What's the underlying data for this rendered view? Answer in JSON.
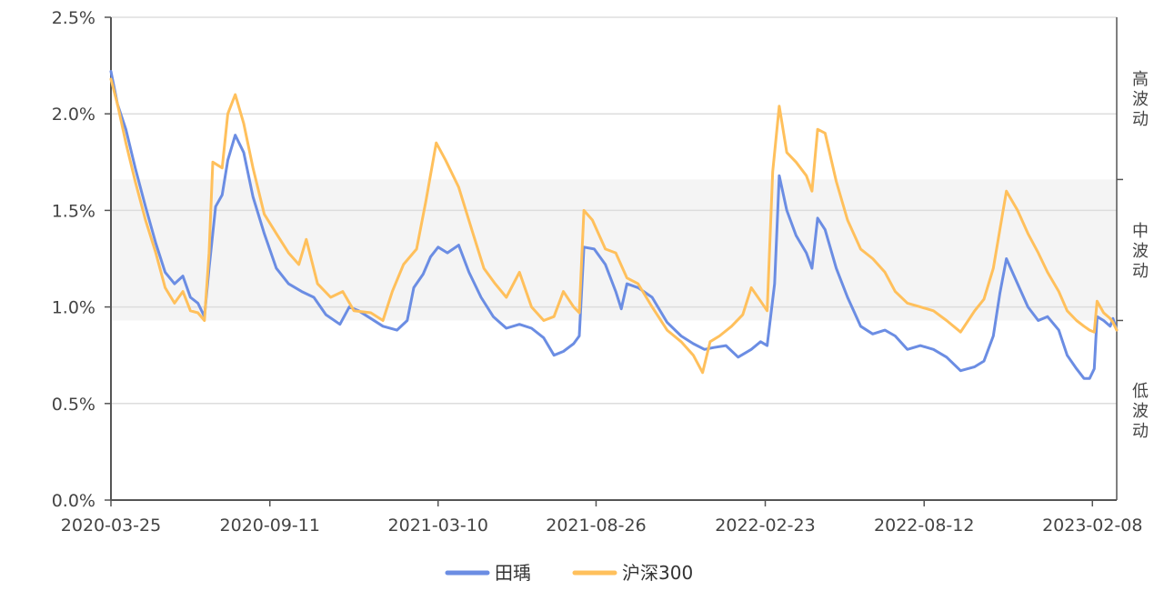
{
  "colors": {
    "tianyu": "#6B8DE3",
    "hs300": "#FFC05C",
    "band": "#F4F4F4",
    "grid": "#DDDDDD",
    "axis": "#555555"
  },
  "chart_data": {
    "type": "line",
    "ylim": [
      0,
      0.025
    ],
    "y_ticks": [
      {
        "value": 0.0,
        "label": "0.0%"
      },
      {
        "value": 0.005,
        "label": "0.5%"
      },
      {
        "value": 0.01,
        "label": "1.0%"
      },
      {
        "value": 0.015,
        "label": "1.5%"
      },
      {
        "value": 0.02,
        "label": "2.0%"
      },
      {
        "value": 0.025,
        "label": "2.5%"
      }
    ],
    "xlim": [
      "2020-03-25",
      "2023-03-06"
    ],
    "x_ticks": [
      "2020-03-25",
      "2020-09-11",
      "2021-03-10",
      "2021-08-26",
      "2022-02-23",
      "2022-08-12",
      "2023-02-08"
    ],
    "bands": {
      "low_mid_boundary": 0.0093,
      "mid_high_boundary": 0.0166,
      "labels": [
        {
          "name": "high",
          "text": "高波动",
          "lines": [
            "高",
            "波",
            "动"
          ]
        },
        {
          "name": "mid",
          "text": "中波动",
          "lines": [
            "中",
            "波",
            "动"
          ]
        },
        {
          "name": "low",
          "text": "低波动",
          "lines": [
            "低",
            "波",
            "动"
          ]
        }
      ]
    },
    "legend_position": "bottom-center",
    "series": [
      {
        "name": "田瑀",
        "key": "tianyu",
        "points": [
          [
            "2020-03-25",
            0.0222
          ],
          [
            "2020-04-01",
            0.0205
          ],
          [
            "2020-04-10",
            0.0192
          ],
          [
            "2020-04-20",
            0.0172
          ],
          [
            "2020-05-01",
            0.0152
          ],
          [
            "2020-05-12",
            0.0133
          ],
          [
            "2020-05-22",
            0.0118
          ],
          [
            "2020-06-01",
            0.0112
          ],
          [
            "2020-06-10",
            0.0116
          ],
          [
            "2020-06-18",
            0.0105
          ],
          [
            "2020-06-26",
            0.0102
          ],
          [
            "2020-07-03",
            0.0095
          ],
          [
            "2020-07-08",
            0.012
          ],
          [
            "2020-07-15",
            0.0152
          ],
          [
            "2020-07-22",
            0.0158
          ],
          [
            "2020-07-28",
            0.0176
          ],
          [
            "2020-08-05",
            0.0189
          ],
          [
            "2020-08-14",
            0.018
          ],
          [
            "2020-08-24",
            0.0157
          ],
          [
            "2020-09-05",
            0.0138
          ],
          [
            "2020-09-18",
            0.012
          ],
          [
            "2020-10-01",
            0.0112
          ],
          [
            "2020-10-15",
            0.0108
          ],
          [
            "2020-10-28",
            0.0105
          ],
          [
            "2020-11-10",
            0.0096
          ],
          [
            "2020-11-25",
            0.0091
          ],
          [
            "2020-12-05",
            0.01
          ],
          [
            "2020-12-15",
            0.0098
          ],
          [
            "2020-12-28",
            0.0094
          ],
          [
            "2021-01-10",
            0.009
          ],
          [
            "2021-01-25",
            0.0088
          ],
          [
            "2021-02-05",
            0.0093
          ],
          [
            "2021-02-12",
            0.011
          ],
          [
            "2021-02-22",
            0.0117
          ],
          [
            "2021-03-02",
            0.0126
          ],
          [
            "2021-03-10",
            0.0131
          ],
          [
            "2021-03-20",
            0.0128
          ],
          [
            "2021-04-01",
            0.0132
          ],
          [
            "2021-04-12",
            0.0118
          ],
          [
            "2021-04-25",
            0.0105
          ],
          [
            "2021-05-08",
            0.0095
          ],
          [
            "2021-05-22",
            0.0089
          ],
          [
            "2021-06-05",
            0.0091
          ],
          [
            "2021-06-18",
            0.0089
          ],
          [
            "2021-07-01",
            0.0084
          ],
          [
            "2021-07-12",
            0.0075
          ],
          [
            "2021-07-22",
            0.0077
          ],
          [
            "2021-08-02",
            0.0081
          ],
          [
            "2021-08-08",
            0.0085
          ],
          [
            "2021-08-13",
            0.0131
          ],
          [
            "2021-08-24",
            0.013
          ],
          [
            "2021-09-05",
            0.0122
          ],
          [
            "2021-09-16",
            0.0108
          ],
          [
            "2021-09-22",
            0.0099
          ],
          [
            "2021-09-28",
            0.0112
          ],
          [
            "2021-10-10",
            0.011
          ],
          [
            "2021-10-25",
            0.0105
          ],
          [
            "2021-11-10",
            0.0092
          ],
          [
            "2021-11-25",
            0.0085
          ],
          [
            "2021-12-08",
            0.0081
          ],
          [
            "2021-12-20",
            0.0078
          ],
          [
            "2021-12-30",
            0.0079
          ],
          [
            "2022-01-12",
            0.008
          ],
          [
            "2022-01-25",
            0.0074
          ],
          [
            "2022-02-08",
            0.0078
          ],
          [
            "2022-02-18",
            0.0082
          ],
          [
            "2022-02-25",
            0.008
          ],
          [
            "2022-03-05",
            0.0112
          ],
          [
            "2022-03-10",
            0.0168
          ],
          [
            "2022-03-18",
            0.015
          ],
          [
            "2022-03-28",
            0.0137
          ],
          [
            "2022-04-08",
            0.0128
          ],
          [
            "2022-04-14",
            0.012
          ],
          [
            "2022-04-20",
            0.0146
          ],
          [
            "2022-04-28",
            0.014
          ],
          [
            "2022-05-10",
            0.012
          ],
          [
            "2022-05-22",
            0.0105
          ],
          [
            "2022-06-05",
            0.009
          ],
          [
            "2022-06-18",
            0.0086
          ],
          [
            "2022-07-01",
            0.0088
          ],
          [
            "2022-07-12",
            0.0085
          ],
          [
            "2022-07-25",
            0.0078
          ],
          [
            "2022-08-08",
            0.008
          ],
          [
            "2022-08-22",
            0.0078
          ],
          [
            "2022-09-05",
            0.0074
          ],
          [
            "2022-09-20",
            0.0067
          ],
          [
            "2022-10-05",
            0.0069
          ],
          [
            "2022-10-15",
            0.0072
          ],
          [
            "2022-10-25",
            0.0085
          ],
          [
            "2022-11-01",
            0.0107
          ],
          [
            "2022-11-08",
            0.0125
          ],
          [
            "2022-11-20",
            0.0112
          ],
          [
            "2022-12-01",
            0.01
          ],
          [
            "2022-12-12",
            0.0093
          ],
          [
            "2022-12-22",
            0.0095
          ],
          [
            "2023-01-03",
            0.0088
          ],
          [
            "2023-01-12",
            0.0075
          ],
          [
            "2023-01-22",
            0.0068
          ],
          [
            "2023-01-30",
            0.0063
          ],
          [
            "2023-02-05",
            0.0063
          ],
          [
            "2023-02-10",
            0.0068
          ],
          [
            "2023-02-13",
            0.0095
          ],
          [
            "2023-02-20",
            0.0093
          ],
          [
            "2023-02-27",
            0.009
          ],
          [
            "2023-03-02",
            0.0094
          ],
          [
            "2023-03-06",
            0.0088
          ]
        ]
      },
      {
        "name": "沪深300",
        "key": "hs300",
        "points": [
          [
            "2020-03-25",
            0.0218
          ],
          [
            "2020-04-01",
            0.0205
          ],
          [
            "2020-04-10",
            0.0185
          ],
          [
            "2020-04-20",
            0.0165
          ],
          [
            "2020-05-01",
            0.0145
          ],
          [
            "2020-05-12",
            0.0128
          ],
          [
            "2020-05-22",
            0.011
          ],
          [
            "2020-06-01",
            0.0102
          ],
          [
            "2020-06-10",
            0.0108
          ],
          [
            "2020-06-18",
            0.0098
          ],
          [
            "2020-06-26",
            0.0097
          ],
          [
            "2020-07-03",
            0.0093
          ],
          [
            "2020-07-08",
            0.0128
          ],
          [
            "2020-07-12",
            0.0175
          ],
          [
            "2020-07-22",
            0.0172
          ],
          [
            "2020-07-28",
            0.02
          ],
          [
            "2020-08-05",
            0.021
          ],
          [
            "2020-08-14",
            0.0195
          ],
          [
            "2020-08-24",
            0.0172
          ],
          [
            "2020-09-05",
            0.0148
          ],
          [
            "2020-09-18",
            0.0138
          ],
          [
            "2020-10-01",
            0.0128
          ],
          [
            "2020-10-12",
            0.0122
          ],
          [
            "2020-10-20",
            0.0135
          ],
          [
            "2020-11-01",
            0.0112
          ],
          [
            "2020-11-15",
            0.0105
          ],
          [
            "2020-11-28",
            0.0108
          ],
          [
            "2020-12-10",
            0.0098
          ],
          [
            "2020-12-28",
            0.0097
          ],
          [
            "2021-01-10",
            0.0093
          ],
          [
            "2021-01-20",
            0.0108
          ],
          [
            "2021-02-01",
            0.0122
          ],
          [
            "2021-02-15",
            0.013
          ],
          [
            "2021-02-25",
            0.0155
          ],
          [
            "2021-03-08",
            0.0185
          ],
          [
            "2021-03-18",
            0.0176
          ],
          [
            "2021-04-01",
            0.0162
          ],
          [
            "2021-04-15",
            0.014
          ],
          [
            "2021-04-28",
            0.012
          ],
          [
            "2021-05-10",
            0.0112
          ],
          [
            "2021-05-22",
            0.0105
          ],
          [
            "2021-06-05",
            0.0118
          ],
          [
            "2021-06-18",
            0.01
          ],
          [
            "2021-07-01",
            0.0093
          ],
          [
            "2021-07-12",
            0.0095
          ],
          [
            "2021-07-22",
            0.0108
          ],
          [
            "2021-08-02",
            0.01
          ],
          [
            "2021-08-08",
            0.0097
          ],
          [
            "2021-08-13",
            0.015
          ],
          [
            "2021-08-22",
            0.0145
          ],
          [
            "2021-09-05",
            0.013
          ],
          [
            "2021-09-16",
            0.0128
          ],
          [
            "2021-09-28",
            0.0115
          ],
          [
            "2021-10-10",
            0.0112
          ],
          [
            "2021-10-25",
            0.01
          ],
          [
            "2021-11-10",
            0.0088
          ],
          [
            "2021-11-25",
            0.0082
          ],
          [
            "2021-12-08",
            0.0075
          ],
          [
            "2021-12-18",
            0.0066
          ],
          [
            "2021-12-26",
            0.0082
          ],
          [
            "2022-01-05",
            0.0085
          ],
          [
            "2022-01-18",
            0.009
          ],
          [
            "2022-01-30",
            0.0096
          ],
          [
            "2022-02-08",
            0.011
          ],
          [
            "2022-02-18",
            0.0103
          ],
          [
            "2022-02-25",
            0.0098
          ],
          [
            "2022-03-03",
            0.017
          ],
          [
            "2022-03-10",
            0.0204
          ],
          [
            "2022-03-18",
            0.018
          ],
          [
            "2022-03-28",
            0.0175
          ],
          [
            "2022-04-08",
            0.0168
          ],
          [
            "2022-04-14",
            0.016
          ],
          [
            "2022-04-20",
            0.0192
          ],
          [
            "2022-04-28",
            0.019
          ],
          [
            "2022-05-10",
            0.0165
          ],
          [
            "2022-05-22",
            0.0145
          ],
          [
            "2022-06-05",
            0.013
          ],
          [
            "2022-06-18",
            0.0125
          ],
          [
            "2022-07-01",
            0.0118
          ],
          [
            "2022-07-12",
            0.0108
          ],
          [
            "2022-07-25",
            0.0102
          ],
          [
            "2022-08-08",
            0.01
          ],
          [
            "2022-08-22",
            0.0098
          ],
          [
            "2022-09-05",
            0.0093
          ],
          [
            "2022-09-20",
            0.0087
          ],
          [
            "2022-10-05",
            0.0098
          ],
          [
            "2022-10-15",
            0.0104
          ],
          [
            "2022-10-25",
            0.012
          ],
          [
            "2022-11-01",
            0.014
          ],
          [
            "2022-11-08",
            0.016
          ],
          [
            "2022-11-20",
            0.015
          ],
          [
            "2022-12-01",
            0.0138
          ],
          [
            "2022-12-12",
            0.0128
          ],
          [
            "2022-12-22",
            0.0118
          ],
          [
            "2023-01-03",
            0.0108
          ],
          [
            "2023-01-12",
            0.0098
          ],
          [
            "2023-01-22",
            0.0093
          ],
          [
            "2023-01-30",
            0.009
          ],
          [
            "2023-02-05",
            0.0088
          ],
          [
            "2023-02-10",
            0.0087
          ],
          [
            "2023-02-13",
            0.0103
          ],
          [
            "2023-02-20",
            0.0097
          ],
          [
            "2023-02-27",
            0.0094
          ],
          [
            "2023-03-02",
            0.0092
          ],
          [
            "2023-03-06",
            0.0088
          ]
        ]
      }
    ]
  }
}
